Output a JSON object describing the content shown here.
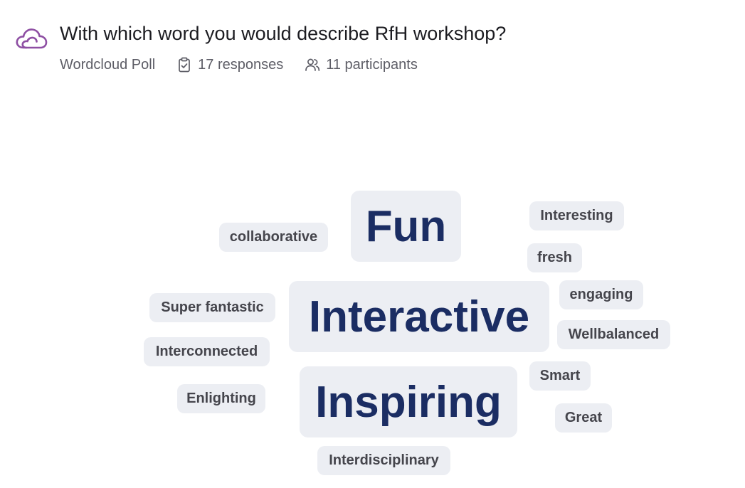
{
  "poll": {
    "title": "With which word you would describe RfH workshop?",
    "type_label": "Wordcloud Poll",
    "responses": "17 responses",
    "participants": "11 participants",
    "icon": "cloud-icon",
    "accent_color": "#8e4fa3"
  },
  "meta_icons": {
    "responses": "clipboard-check-icon",
    "participants": "users-icon"
  },
  "wordcloud": {
    "box_color": "#eceef3",
    "large_word_color": "#1b2d63",
    "small_word_color": "#45454c",
    "words": {
      "fun": "Fun",
      "interactive": "Interactive",
      "inspiring": "Inspiring",
      "collaborative": "collaborative",
      "interesting": "Interesting",
      "fresh": "fresh",
      "engaging": "engaging",
      "super_fantastic": "Super fantastic",
      "wellbalanced": "Wellbalanced",
      "interconnected": "Interconnected",
      "smart": "Smart",
      "enlighting": "Enlighting",
      "great": "Great",
      "interdisciplinary": "Interdisciplinary"
    }
  }
}
